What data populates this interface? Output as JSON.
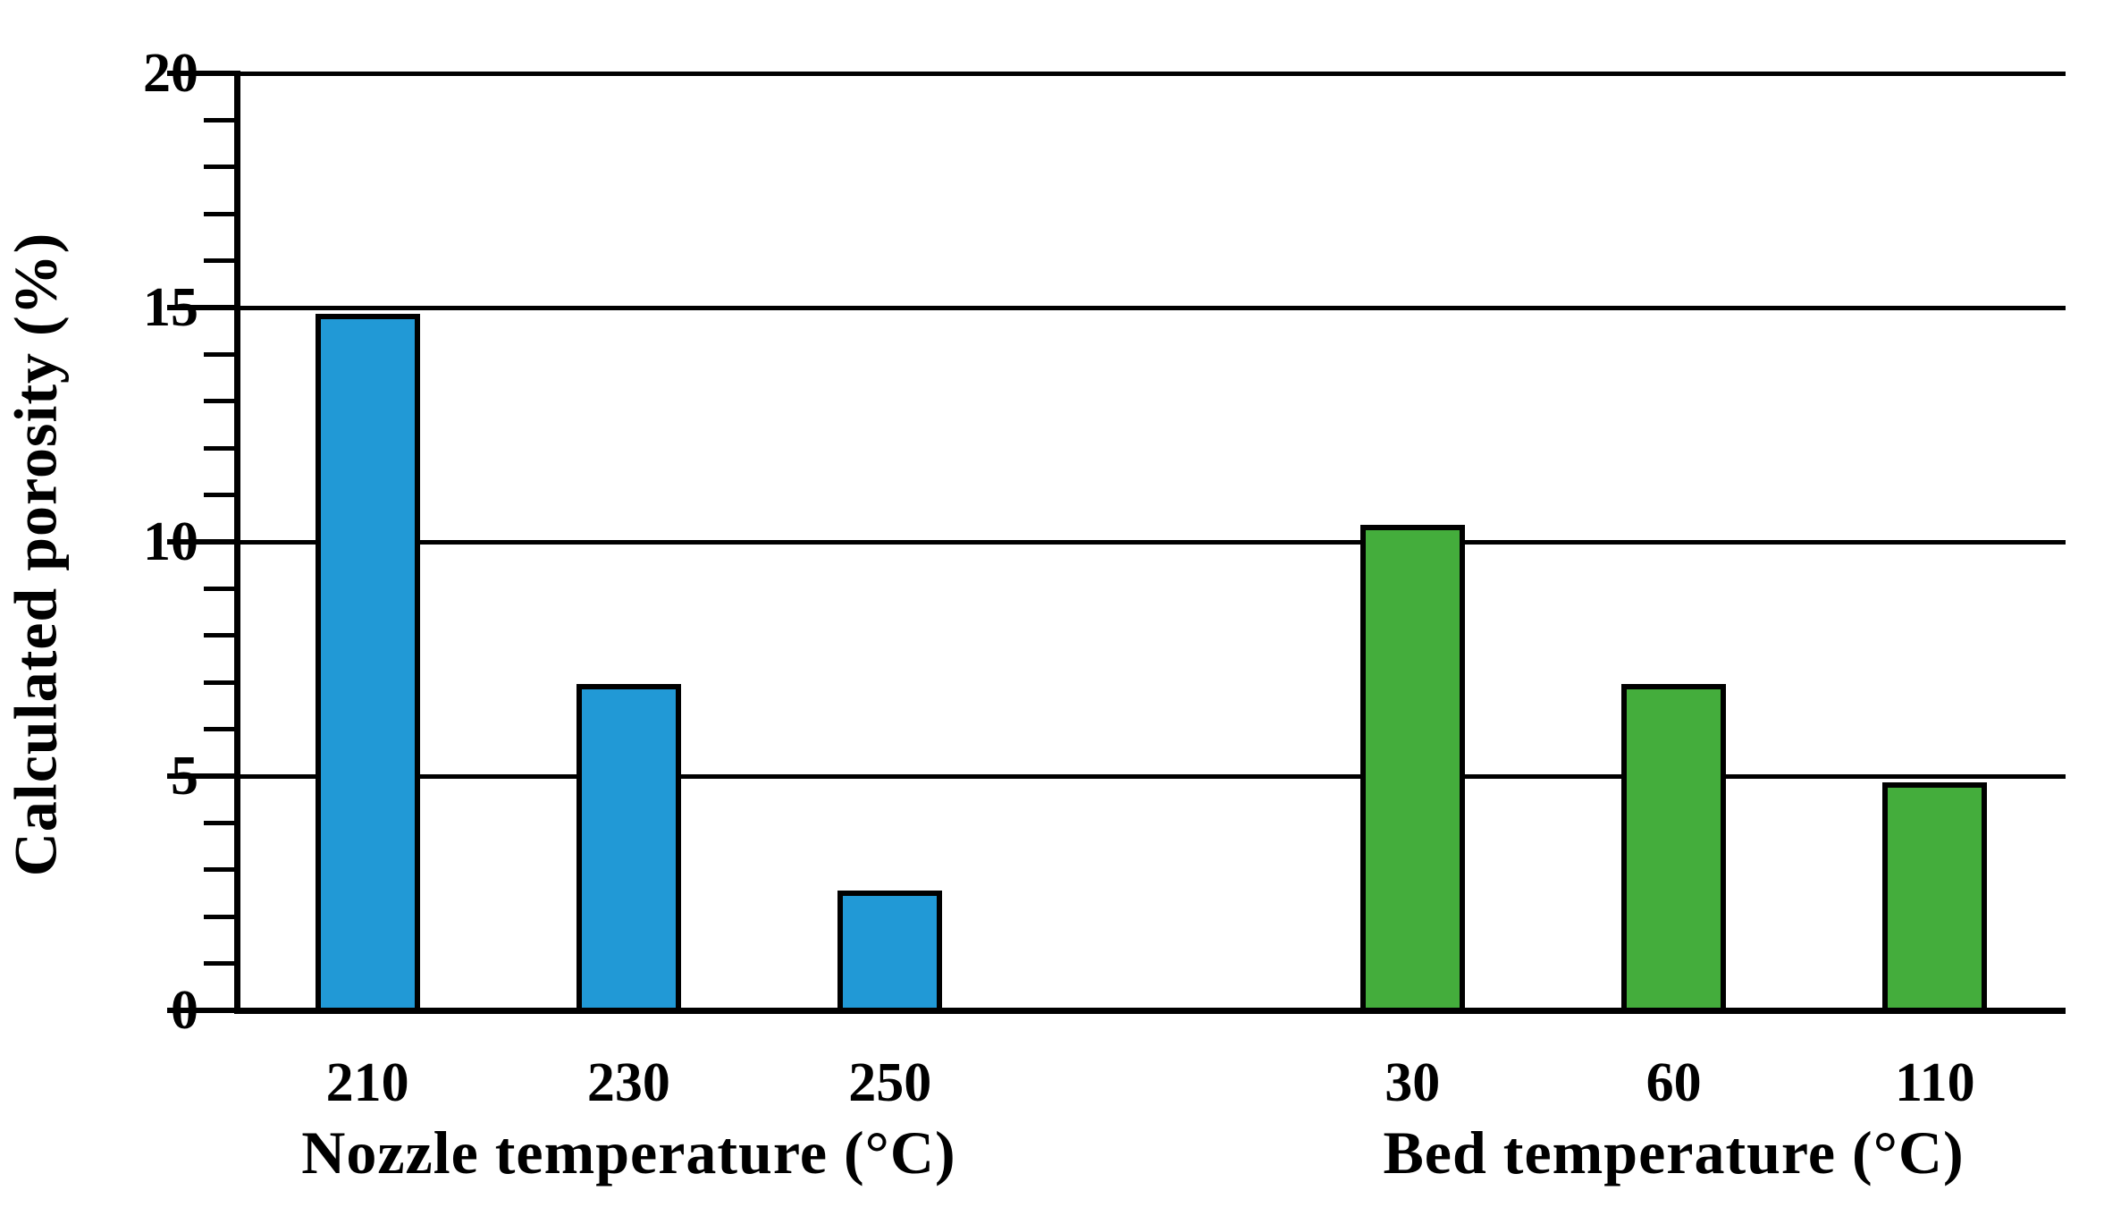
{
  "figure": {
    "background_color": "#FFFFFF",
    "ink_color": "#000000",
    "bar_blue": "#2199D6",
    "bar_green": "#44AD3C"
  },
  "chart_data": {
    "type": "bar",
    "title": "",
    "ylabel": "Calculated porosity (%)",
    "xlabel_groups": [
      "Nozzle temperature (°C)",
      "Bed temperature (°C)"
    ],
    "ylim": [
      0,
      20
    ],
    "yticks": [
      0,
      5,
      10,
      15,
      20
    ],
    "minor_tick_step": 1,
    "grid": "horizontal-major-gridlines",
    "legend_position": "none",
    "groups": [
      {
        "title": "Nozzle temperature (°C)",
        "color": "#2199D6",
        "categories": [
          "210",
          "230",
          "250"
        ],
        "values": [
          14.8,
          6.9,
          2.5
        ]
      },
      {
        "title": "Bed temperature (°C)",
        "color": "#44AD3C",
        "categories": [
          "30",
          "60",
          "110"
        ],
        "values": [
          10.3,
          6.9,
          4.8
        ]
      }
    ]
  }
}
